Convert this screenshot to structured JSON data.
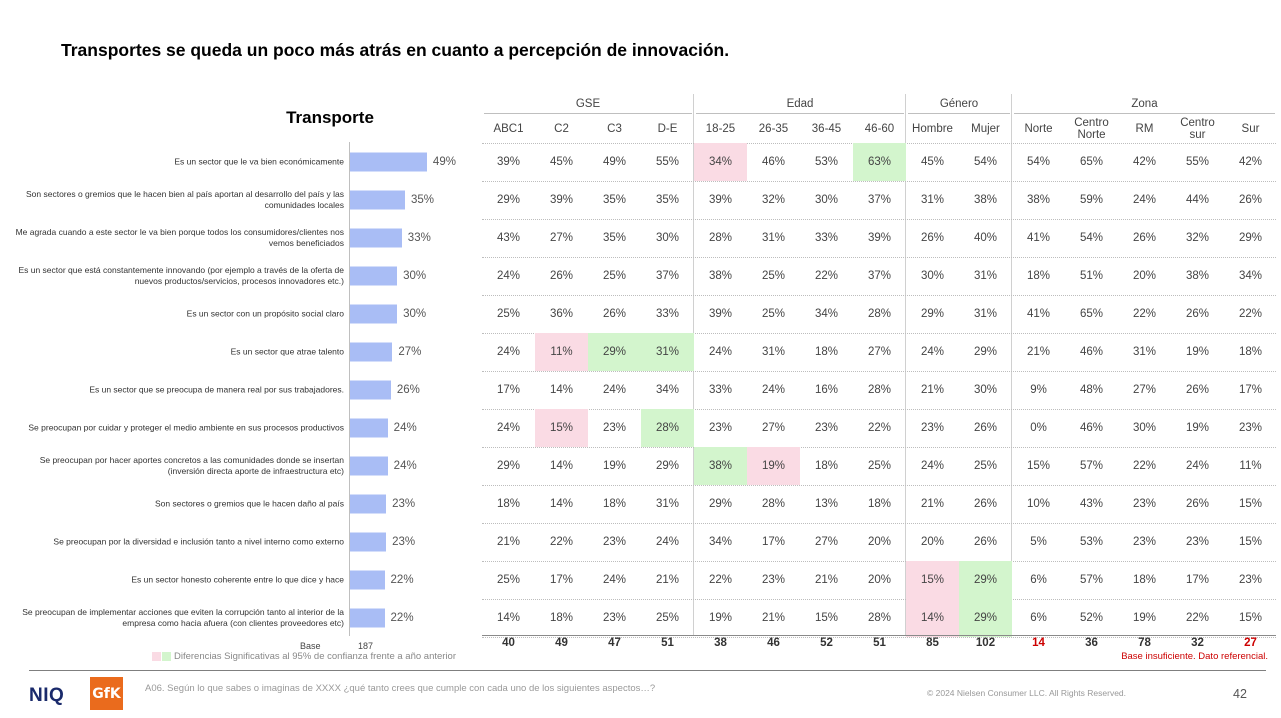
{
  "title": "Transportes se queda un poco más atrás en cuanto a percepción de innovación.",
  "chart_title": "Transporte",
  "groups": [
    {
      "label": "GSE",
      "start": 0,
      "span": 4
    },
    {
      "label": "Edad",
      "start": 4,
      "span": 4
    },
    {
      "label": "Género",
      "start": 8,
      "span": 2
    },
    {
      "label": "Zona",
      "start": 10,
      "span": 5
    }
  ],
  "columns": [
    "ABC1",
    "C2",
    "C3",
    "D-E",
    "18-25",
    "26-35",
    "36-45",
    "46-60",
    "Hombre",
    "Mujer",
    "Norte",
    "Centro\nNorte",
    "RM",
    "Centro\nsur",
    "Sur"
  ],
  "chart_data": {
    "type": "bar",
    "title": "Transporte",
    "orientation": "horizontal",
    "value_suffix": "%",
    "categories": [
      "Es un sector que le va bien económicamente",
      "Son sectores o gremios que le hacen bien al país aportan al desarrollo del país y las comunidades locales",
      "Me agrada cuando a este sector le va bien porque todos los consumidores/clientes nos vemos beneficiados",
      "Es un sector que está constantemente innovando (por ejemplo a través de la oferta de nuevos productos/servicios, procesos innovadores etc.)",
      "Es un sector con un propósito social claro",
      "Es un sector que atrae talento",
      "Es un sector que se preocupa de manera real por sus trabajadores.",
      "Se preocupan por cuidar y proteger el medio ambiente en sus procesos productivos",
      "Se preocupan por hacer aportes concretos a las comunidades donde se insertan (inversión directa aporte de infraestructura etc)",
      "Son sectores o gremios que le hacen daño al país",
      "Se preocupan por la diversidad e inclusión tanto a nivel interno como externo",
      "Es un sector honesto coherente entre lo que dice y hace",
      "Se preocupan de implementar acciones que eviten la corrupción tanto al interior de la empresa como hacia afuera (con clientes proveedores etc)"
    ],
    "values": [
      49,
      35,
      33,
      30,
      30,
      27,
      26,
      24,
      24,
      23,
      23,
      22,
      22
    ],
    "table": [
      [
        39,
        45,
        49,
        55,
        34,
        46,
        53,
        63,
        45,
        54,
        54,
        65,
        42,
        55,
        42
      ],
      [
        29,
        39,
        35,
        35,
        39,
        32,
        30,
        37,
        31,
        38,
        38,
        59,
        24,
        44,
        26
      ],
      [
        43,
        27,
        35,
        30,
        28,
        31,
        33,
        39,
        26,
        40,
        41,
        54,
        26,
        32,
        29
      ],
      [
        24,
        26,
        25,
        37,
        38,
        25,
        22,
        37,
        30,
        31,
        18,
        51,
        20,
        38,
        34
      ],
      [
        25,
        36,
        26,
        33,
        39,
        25,
        34,
        28,
        29,
        31,
        41,
        65,
        22,
        26,
        22
      ],
      [
        24,
        11,
        29,
        31,
        24,
        31,
        18,
        27,
        24,
        29,
        21,
        46,
        31,
        19,
        18
      ],
      [
        17,
        14,
        24,
        34,
        33,
        24,
        16,
        28,
        21,
        30,
        9,
        48,
        27,
        26,
        17
      ],
      [
        24,
        15,
        23,
        28,
        23,
        27,
        23,
        22,
        23,
        26,
        0,
        46,
        30,
        19,
        23
      ],
      [
        29,
        14,
        19,
        29,
        38,
        19,
        18,
        25,
        24,
        25,
        15,
        57,
        22,
        24,
        11
      ],
      [
        18,
        14,
        18,
        31,
        29,
        28,
        13,
        18,
        21,
        26,
        10,
        43,
        23,
        26,
        15
      ],
      [
        21,
        22,
        23,
        24,
        34,
        17,
        27,
        20,
        20,
        26,
        5,
        53,
        23,
        23,
        15
      ],
      [
        25,
        17,
        24,
        21,
        22,
        23,
        21,
        20,
        15,
        29,
        6,
        57,
        18,
        17,
        23
      ],
      [
        14,
        18,
        23,
        25,
        19,
        21,
        15,
        28,
        14,
        29,
        6,
        52,
        19,
        22,
        15
      ]
    ],
    "highlights": [
      {
        "row": 0,
        "col": 4,
        "sig": "lower"
      },
      {
        "row": 0,
        "col": 7,
        "sig": "higher"
      },
      {
        "row": 5,
        "col": 1,
        "sig": "lower"
      },
      {
        "row": 5,
        "col": 2,
        "sig": "higher"
      },
      {
        "row": 5,
        "col": 3,
        "sig": "higher"
      },
      {
        "row": 7,
        "col": 1,
        "sig": "lower"
      },
      {
        "row": 7,
        "col": 3,
        "sig": "higher"
      },
      {
        "row": 8,
        "col": 4,
        "sig": "higher"
      },
      {
        "row": 8,
        "col": 5,
        "sig": "lower"
      },
      {
        "row": 11,
        "col": 8,
        "sig": "lower"
      },
      {
        "row": 11,
        "col": 9,
        "sig": "higher"
      },
      {
        "row": 12,
        "col": 8,
        "sig": "lower"
      },
      {
        "row": 12,
        "col": 9,
        "sig": "higher"
      }
    ],
    "base_label": "Base",
    "base_total": 187,
    "base": [
      40,
      49,
      47,
      51,
      38,
      46,
      52,
      51,
      85,
      102,
      14,
      36,
      78,
      32,
      27
    ],
    "base_insufficient": [
      false,
      false,
      false,
      false,
      false,
      false,
      false,
      false,
      false,
      false,
      true,
      false,
      false,
      false,
      true
    ]
  },
  "colors": {
    "bar": "#a9bdf5",
    "sig_lower": "#fadbe4",
    "sig_higher": "#d3f5cd",
    "warning": "#cc0000"
  },
  "legend_text": "Diferencias Significativas al 95% de confianza frente a año anterior",
  "note_text": "Base insuficiente. Dato referencial.",
  "footnote": "A06. Según lo que sabes o imaginas de XXXX ¿qué tanto crees que cumple con cada uno de los siguientes aspectos…?",
  "copyright": "© 2024 Nielsen Consumer LLC. All Rights Reserved.",
  "page_number": "42",
  "logos": {
    "niq": "NIQ",
    "gfk": "GfK"
  }
}
